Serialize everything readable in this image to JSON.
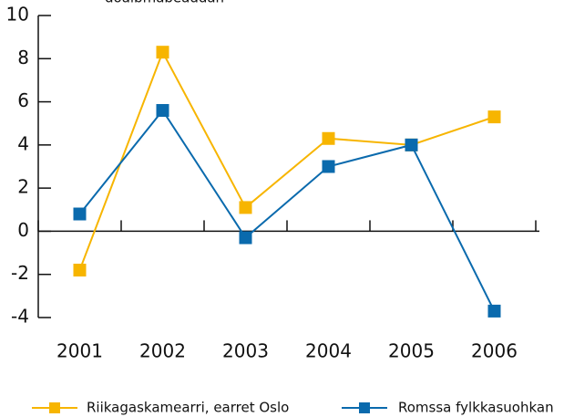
{
  "chart_data": {
    "type": "line",
    "title": "doaibmabeaddan",
    "categories": [
      "2001",
      "2002",
      "2003",
      "2004",
      "2005",
      "2006"
    ],
    "series": [
      {
        "name": "Riikagaskamearri, earret Oslo",
        "color": "#f7b500",
        "values": [
          -1.8,
          8.3,
          1.1,
          4.3,
          4.0,
          5.3
        ]
      },
      {
        "name": "Romssa fylkkasuohkan",
        "color": "#0a6aad",
        "values": [
          0.8,
          5.6,
          -0.3,
          3.0,
          4.0,
          -3.7
        ]
      }
    ],
    "ylim": [
      -4,
      10
    ],
    "yticks": [
      -4,
      -2,
      0,
      2,
      4,
      6,
      8,
      10
    ]
  }
}
